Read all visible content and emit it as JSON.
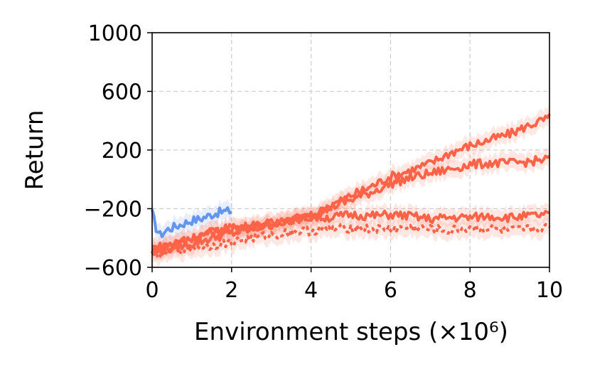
{
  "chart_data": {
    "type": "line",
    "title": "",
    "xlabel": "Environment steps (×10⁶)",
    "ylabel": "Return",
    "xlim": [
      0,
      10
    ],
    "ylim": [
      -600,
      1000
    ],
    "x_ticks": [
      0,
      2,
      4,
      6,
      8,
      10
    ],
    "x_tick_labels": [
      "0",
      "2",
      "4",
      "6",
      "8",
      "10"
    ],
    "y_ticks": [
      -600,
      -200,
      200,
      600,
      1000
    ],
    "y_tick_labels": [
      "−600",
      "−200",
      "200",
      "600",
      "1000"
    ],
    "grid": true,
    "legend": "none",
    "series": [
      {
        "color": "#6495ED",
        "style": "solid",
        "x": [
          0,
          0.1,
          0.2,
          0.4,
          0.6,
          0.8,
          1.0,
          1.2,
          1.4,
          1.6,
          1.8,
          2.0
        ],
        "y": [
          -230,
          -330,
          -380,
          -340,
          -320,
          -300,
          -280,
          -270,
          -250,
          -230,
          -220,
          -215
        ]
      },
      {
        "color": "#FF6347",
        "style": "solid",
        "x": [
          0,
          0.5,
          1,
          1.5,
          2,
          2.5,
          3,
          3.5,
          4,
          4.5,
          5,
          5.5,
          6,
          6.5,
          7,
          7.5,
          8,
          8.5,
          9,
          9.5,
          10
        ],
        "y": [
          -480,
          -440,
          -400,
          -360,
          -330,
          -310,
          -300,
          -280,
          -250,
          -180,
          -110,
          -50,
          20,
          60,
          110,
          180,
          230,
          270,
          310,
          370,
          420
        ]
      },
      {
        "color": "#FF6347",
        "style": "solid",
        "x": [
          0,
          0.5,
          1,
          1.5,
          2,
          2.5,
          3,
          3.5,
          4,
          4.5,
          5,
          5.5,
          6,
          6.5,
          7,
          7.5,
          8,
          8.5,
          9,
          9.5,
          10
        ],
        "y": [
          -500,
          -470,
          -440,
          -400,
          -370,
          -340,
          -310,
          -280,
          -240,
          -190,
          -140,
          -90,
          -30,
          10,
          40,
          70,
          100,
          110,
          110,
          120,
          140
        ]
      },
      {
        "color": "#FF6347",
        "style": "solid",
        "x": [
          0,
          0.5,
          1,
          1.5,
          2,
          2.5,
          3,
          3.5,
          4,
          4.5,
          5,
          5.5,
          6,
          6.5,
          7,
          7.5,
          8,
          8.5,
          9,
          9.5,
          10
        ],
        "y": [
          -470,
          -440,
          -400,
          -360,
          -330,
          -320,
          -300,
          -270,
          -260,
          -260,
          -240,
          -250,
          -240,
          -250,
          -270,
          -260,
          -260,
          -250,
          -260,
          -250,
          -240
        ]
      },
      {
        "color": "#FF6347",
        "style": "dotted",
        "x": [
          0,
          0.5,
          1,
          1.5,
          2,
          2.5,
          3,
          3.5,
          4,
          4.5,
          5,
          5.5,
          6,
          6.5,
          7,
          7.5,
          8,
          8.5,
          9,
          9.5,
          10
        ],
        "y": [
          -520,
          -490,
          -470,
          -450,
          -430,
          -400,
          -380,
          -360,
          -350,
          -340,
          -330,
          -340,
          -340,
          -330,
          -340,
          -350,
          -330,
          -340,
          -350,
          -340,
          -330
        ]
      }
    ]
  }
}
